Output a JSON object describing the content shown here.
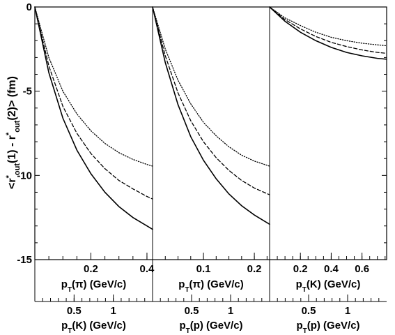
{
  "chart_data": {
    "type": "line",
    "ylabel": {
      "pre": "<r",
      "sup1": "*",
      "sub1": "out",
      "mid": "(1) - r",
      "sup2": "*",
      "sub2": "out",
      "post": "(2)> (fm)"
    },
    "ylim": [
      -15,
      0
    ],
    "y_ticks": [
      {
        "value": 0,
        "label": "0"
      },
      {
        "value": -5,
        "label": "-5"
      },
      {
        "value": -10,
        "label": "-10"
      },
      {
        "value": -15,
        "label": "-15"
      }
    ],
    "line_styles": [
      "solid",
      "dashed",
      "dotted"
    ],
    "panels": [
      {
        "bottom_axis": {
          "p": "p",
          "sub": "T",
          "rest": "(π) (GeV/c)"
        },
        "bottom_range": [
          0.0,
          0.42
        ],
        "bottom_ticks": [
          {
            "value": 0.2,
            "label": "0.2"
          },
          {
            "value": 0.4,
            "label": "0.4"
          }
        ],
        "bottom_minor_step": 0.05,
        "second_axis": {
          "p": "p",
          "sub": "T",
          "rest": "(K) (GeV/c)"
        },
        "second_ticks": [
          {
            "value": 0.5,
            "label": "0.5"
          },
          {
            "value": 1,
            "label": "1"
          }
        ],
        "second_range": [
          0.0,
          1.5
        ],
        "second_minor_step": 0.1,
        "series": [
          {
            "style": "solid",
            "x": [
              0.0,
              0.05,
              0.1,
              0.15,
              0.2,
              0.25,
              0.3,
              0.35,
              0.4,
              0.42
            ],
            "y": [
              0,
              -3.9,
              -6.6,
              -8.5,
              -9.9,
              -11.0,
              -11.85,
              -12.5,
              -13.0,
              -13.2
            ]
          },
          {
            "style": "dashed",
            "x": [
              0.0,
              0.05,
              0.1,
              0.15,
              0.2,
              0.25,
              0.3,
              0.35,
              0.4,
              0.42
            ],
            "y": [
              0,
              -3.5,
              -5.9,
              -7.5,
              -8.7,
              -9.6,
              -10.3,
              -10.8,
              -11.25,
              -11.4
            ]
          },
          {
            "style": "dotted",
            "x": [
              0.0,
              0.05,
              0.1,
              0.15,
              0.2,
              0.25,
              0.3,
              0.35,
              0.4,
              0.42
            ],
            "y": [
              0,
              -3.0,
              -5.0,
              -6.35,
              -7.35,
              -8.1,
              -8.65,
              -9.05,
              -9.35,
              -9.45
            ]
          }
        ]
      },
      {
        "bottom_axis": {
          "p": "p",
          "sub": "T",
          "rest": "(π) (GeV/c)"
        },
        "bottom_range": [
          0.0,
          0.23
        ],
        "bottom_ticks": [
          {
            "value": 0.1,
            "label": "0.1"
          },
          {
            "value": 0.2,
            "label": "0.2"
          }
        ],
        "bottom_minor_step": 0.025,
        "second_axis": {
          "p": "p",
          "sub": "T",
          "rest": "(p) (GeV/c)"
        },
        "second_ticks": [
          {
            "value": 0.5,
            "label": "0.5"
          },
          {
            "value": 1,
            "label": "1"
          }
        ],
        "second_range": [
          0.0,
          1.5
        ],
        "second_minor_step": 0.1,
        "series": [
          {
            "style": "solid",
            "x": [
              0.0,
              0.025,
              0.05,
              0.075,
              0.1,
              0.125,
              0.15,
              0.175,
              0.2,
              0.23
            ],
            "y": [
              0,
              -3.3,
              -5.8,
              -7.7,
              -9.1,
              -10.2,
              -11.1,
              -11.8,
              -12.35,
              -12.9
            ]
          },
          {
            "style": "dashed",
            "x": [
              0.0,
              0.025,
              0.05,
              0.075,
              0.1,
              0.125,
              0.15,
              0.175,
              0.2,
              0.23
            ],
            "y": [
              0,
              -2.9,
              -5.1,
              -6.75,
              -8.0,
              -8.95,
              -9.7,
              -10.3,
              -10.75,
              -11.15
            ]
          },
          {
            "style": "dotted",
            "x": [
              0.0,
              0.025,
              0.05,
              0.075,
              0.1,
              0.125,
              0.15,
              0.175,
              0.2,
              0.23
            ],
            "y": [
              0,
              -2.5,
              -4.35,
              -5.75,
              -6.85,
              -7.65,
              -8.3,
              -8.8,
              -9.15,
              -9.45
            ]
          }
        ]
      },
      {
        "bottom_axis": {
          "p": "p",
          "sub": "T",
          "rest": "(K) (GeV/c)"
        },
        "bottom_range": [
          0.0,
          0.76
        ],
        "bottom_ticks": [
          {
            "value": 0.2,
            "label": "0.2"
          },
          {
            "value": 0.4,
            "label": "0.4"
          },
          {
            "value": 0.6,
            "label": "0.6"
          }
        ],
        "bottom_minor_step": 0.05,
        "second_axis": {
          "p": "p",
          "sub": "T",
          "rest": "(p) (GeV/c)"
        },
        "second_ticks": [
          {
            "value": 0.5,
            "label": "0.5"
          },
          {
            "value": 1,
            "label": "1"
          }
        ],
        "second_range": [
          0.0,
          1.5
        ],
        "second_minor_step": 0.1,
        "series": [
          {
            "style": "solid",
            "x": [
              0.0,
              0.1,
              0.2,
              0.3,
              0.4,
              0.5,
              0.6,
              0.7,
              0.76
            ],
            "y": [
              0,
              -0.85,
              -1.5,
              -2.0,
              -2.4,
              -2.7,
              -2.9,
              -3.05,
              -3.1
            ]
          },
          {
            "style": "dashed",
            "x": [
              0.0,
              0.1,
              0.2,
              0.3,
              0.4,
              0.5,
              0.6,
              0.7,
              0.76
            ],
            "y": [
              0,
              -0.75,
              -1.3,
              -1.75,
              -2.1,
              -2.35,
              -2.55,
              -2.7,
              -2.75
            ]
          },
          {
            "style": "dotted",
            "x": [
              0.0,
              0.1,
              0.2,
              0.3,
              0.4,
              0.5,
              0.6,
              0.7,
              0.76
            ],
            "y": [
              0,
              -0.65,
              -1.1,
              -1.5,
              -1.8,
              -2.0,
              -2.15,
              -2.25,
              -2.3
            ]
          }
        ]
      }
    ]
  }
}
